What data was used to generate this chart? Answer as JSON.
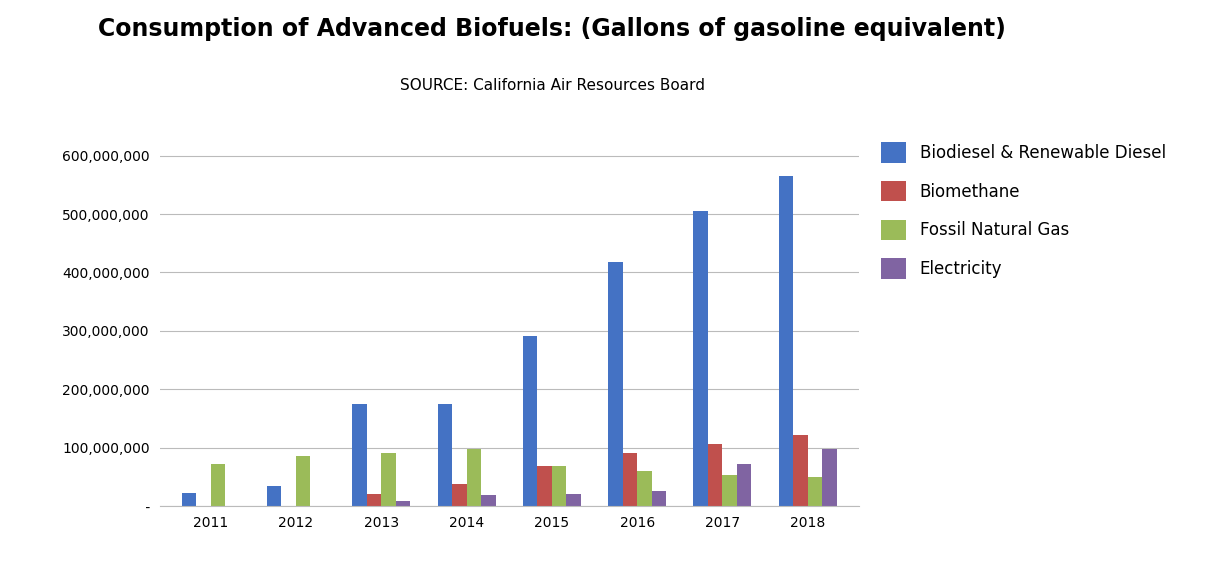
{
  "title": "Consumption of Advanced Biofuels: (Gallons of gasoline equivalent)",
  "subtitle": "SOURCE: California Air Resources Board",
  "years": [
    2011,
    2012,
    2013,
    2014,
    2015,
    2016,
    2017,
    2018
  ],
  "series": {
    "Biodiesel & Renewable Diesel": {
      "values": [
        22000000,
        35000000,
        175000000,
        175000000,
        292000000,
        418000000,
        505000000,
        565000000
      ],
      "color": "#4472C4"
    },
    "Biomethane": {
      "values": [
        0,
        0,
        20000000,
        38000000,
        68000000,
        90000000,
        107000000,
        122000000
      ],
      "color": "#C0504D"
    },
    "Fossil Natural Gas": {
      "values": [
        72000000,
        85000000,
        90000000,
        97000000,
        68000000,
        60000000,
        53000000,
        50000000
      ],
      "color": "#9BBB59"
    },
    "Electricity": {
      "values": [
        0,
        0,
        8000000,
        18000000,
        20000000,
        25000000,
        72000000,
        97000000
      ],
      "color": "#8064A2"
    }
  },
  "ylim": [
    0,
    650000000
  ],
  "yticks": [
    0,
    100000000,
    200000000,
    300000000,
    400000000,
    500000000,
    600000000
  ],
  "background_color": "#ffffff",
  "title_fontsize": 17,
  "subtitle_fontsize": 11,
  "legend_fontsize": 12,
  "tick_fontsize": 10,
  "bar_width": 0.17
}
